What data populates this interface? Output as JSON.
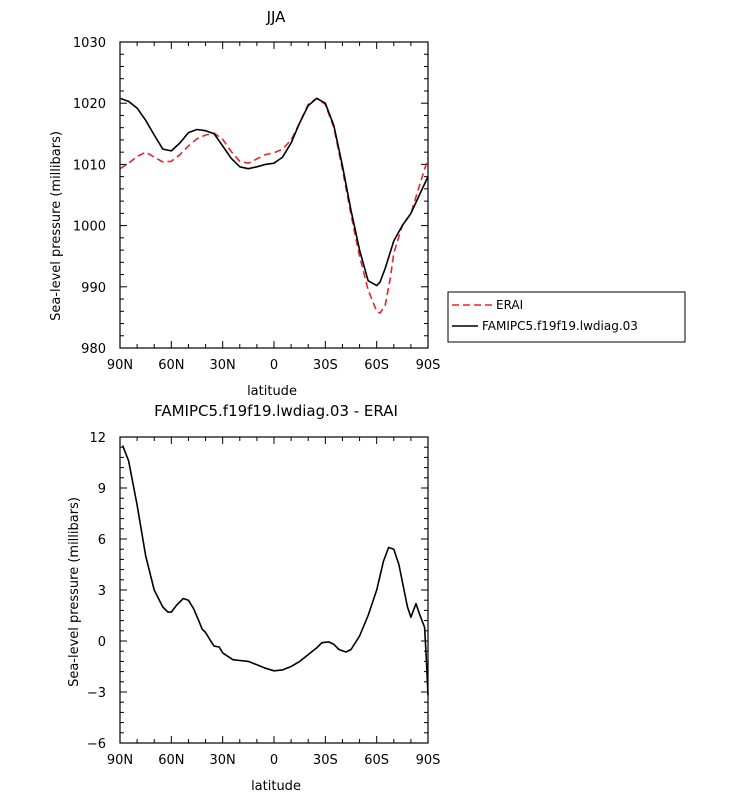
{
  "chart_data": [
    {
      "type": "line",
      "title": "JJA",
      "xlabel": "latitude",
      "ylabel": "Sea-level pressure (millibars)",
      "xlim": [
        90,
        -90
      ],
      "ylim": [
        980,
        1030
      ],
      "xticks": [
        90,
        60,
        30,
        0,
        -30,
        -60,
        -90
      ],
      "xtick_labels": [
        "90N",
        "60N",
        "30N",
        "0",
        "30S",
        "60S",
        "90S"
      ],
      "yticks": [
        980,
        990,
        1000,
        1010,
        1020,
        1030
      ],
      "ytick_labels": [
        "980",
        "990",
        "1000",
        "1010",
        "1020",
        "1030"
      ],
      "legend_placement": "outside-right",
      "grid": false,
      "series": [
        {
          "name": "ERAI",
          "color": "#e8242b",
          "dash": true,
          "x": [
            90,
            85,
            80,
            75,
            70,
            65,
            60,
            55,
            50,
            45,
            40,
            35,
            30,
            25,
            20,
            15,
            10,
            5,
            0,
            -5,
            -10,
            -15,
            -20,
            -25,
            -30,
            -35,
            -40,
            -45,
            -50,
            -55,
            -60,
            -62,
            -65,
            -68,
            -70,
            -75,
            -80,
            -85,
            -90
          ],
          "y": [
            1009.3,
            1010.2,
            1011.3,
            1012.0,
            1011.2,
            1010.4,
            1010.5,
            1011.6,
            1013.0,
            1014.2,
            1014.8,
            1015.1,
            1014.1,
            1012.1,
            1010.5,
            1010.2,
            1010.9,
            1011.6,
            1011.9,
            1012.5,
            1014.0,
            1016.8,
            1019.8,
            1020.8,
            1019.8,
            1016.0,
            1009.2,
            1001.8,
            995.0,
            989.5,
            986.0,
            985.7,
            987.0,
            991.5,
            995.5,
            1000.0,
            1002.0,
            1006.5,
            1011.0
          ]
        },
        {
          "name": "FAMIPC5.f19f19.lwdiag.03",
          "color": "#000000",
          "dash": false,
          "x": [
            90,
            85,
            80,
            75,
            70,
            65,
            60,
            55,
            50,
            45,
            40,
            35,
            30,
            25,
            20,
            15,
            10,
            5,
            0,
            -5,
            -10,
            -15,
            -20,
            -25,
            -30,
            -35,
            -40,
            -45,
            -50,
            -55,
            -60,
            -62,
            -65,
            -70,
            -75,
            -80,
            -85,
            -90
          ],
          "y": [
            1020.8,
            1020.3,
            1019.2,
            1017.2,
            1014.8,
            1012.5,
            1012.2,
            1013.5,
            1015.2,
            1015.7,
            1015.5,
            1015.0,
            1013.0,
            1011.0,
            1009.6,
            1009.3,
            1009.6,
            1010.0,
            1010.2,
            1011.2,
            1013.5,
            1016.8,
            1019.6,
            1020.8,
            1020.0,
            1016.3,
            1009.8,
            1002.5,
            996.0,
            991.0,
            990.2,
            990.8,
            993.0,
            997.5,
            1000.0,
            1002.0,
            1005.0,
            1008.0
          ]
        }
      ]
    },
    {
      "type": "line",
      "title": "FAMIPC5.f19f19.lwdiag.03 - ERAI",
      "xlabel": "latitude",
      "ylabel": "Sea-level pressure (millibars)",
      "xlim": [
        90,
        -90
      ],
      "ylim": [
        -6,
        12
      ],
      "xticks": [
        90,
        60,
        30,
        0,
        -30,
        -60,
        -90
      ],
      "xtick_labels": [
        "90N",
        "60N",
        "30N",
        "0",
        "30S",
        "60S",
        "90S"
      ],
      "yticks": [
        -6,
        -3,
        0,
        3,
        6,
        9,
        12
      ],
      "ytick_labels": [
        "−6",
        "−3",
        "0",
        "3",
        "6",
        "9",
        "12"
      ],
      "grid": false,
      "series": [
        {
          "color": "#000000",
          "dash": false,
          "x": [
            88.5,
            85,
            80,
            75,
            70,
            65,
            62,
            60,
            57,
            53,
            50,
            47,
            44,
            42,
            40,
            37,
            35,
            32,
            30,
            27,
            24,
            20,
            15,
            10,
            5,
            0,
            -5,
            -10,
            -15,
            -20,
            -25,
            -28,
            -32,
            -35,
            -38,
            -42,
            -45,
            -50,
            -55,
            -60,
            -64,
            -67,
            -70,
            -73,
            -75,
            -78,
            -80,
            -83,
            -85,
            -88,
            -89,
            -90
          ],
          "y": [
            11.5,
            10.6,
            8.0,
            5.0,
            3.0,
            2.0,
            1.7,
            1.7,
            2.1,
            2.5,
            2.4,
            1.9,
            1.2,
            0.7,
            0.5,
            0.0,
            -0.3,
            -0.35,
            -0.7,
            -0.9,
            -1.1,
            -1.15,
            -1.2,
            -1.4,
            -1.6,
            -1.75,
            -1.7,
            -1.5,
            -1.2,
            -0.8,
            -0.4,
            -0.1,
            -0.05,
            -0.2,
            -0.5,
            -0.65,
            -0.5,
            0.3,
            1.5,
            3.0,
            4.7,
            5.5,
            5.4,
            4.5,
            3.5,
            2.0,
            1.4,
            2.2,
            1.6,
            0.8,
            -1.0,
            -3.2
          ]
        }
      ]
    }
  ]
}
